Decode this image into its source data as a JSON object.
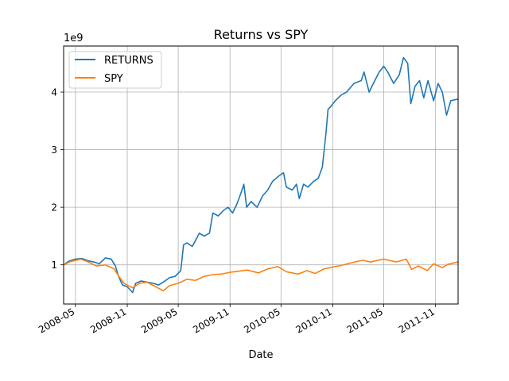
{
  "chart_data": {
    "type": "line",
    "title": "Returns vs SPY",
    "xlabel": "Date",
    "ylabel": "",
    "y_scale_label": "1e9",
    "x_ticks": [
      "2008-05",
      "2008-11",
      "2009-05",
      "2009-11",
      "2010-05",
      "2010-11",
      "2011-05",
      "2011-11"
    ],
    "y_ticks": [
      1,
      2,
      3,
      4
    ],
    "xlim": [
      "2008-03-20",
      "2012-01-20"
    ],
    "ylim": [
      0.32,
      4.8
    ],
    "grid": true,
    "legend_position": "top-left",
    "series": [
      {
        "name": "RETURNS",
        "color": "#1f77b4",
        "points": [
          [
            "2008-03-20",
            1.0
          ],
          [
            "2008-04-10",
            1.07
          ],
          [
            "2008-05-01",
            1.1
          ],
          [
            "2008-05-25",
            1.11
          ],
          [
            "2008-06-15",
            1.07
          ],
          [
            "2008-07-05",
            1.05
          ],
          [
            "2008-07-25",
            1.02
          ],
          [
            "2008-08-15",
            1.12
          ],
          [
            "2008-09-05",
            1.1
          ],
          [
            "2008-09-20",
            0.98
          ],
          [
            "2008-10-01",
            0.8
          ],
          [
            "2008-10-15",
            0.65
          ],
          [
            "2008-11-01",
            0.62
          ],
          [
            "2008-11-20",
            0.52
          ],
          [
            "2008-12-01",
            0.68
          ],
          [
            "2008-12-20",
            0.72
          ],
          [
            "2009-01-10",
            0.7
          ],
          [
            "2009-02-01",
            0.68
          ],
          [
            "2009-02-20",
            0.65
          ],
          [
            "2009-03-09",
            0.7
          ],
          [
            "2009-04-01",
            0.78
          ],
          [
            "2009-04-20",
            0.8
          ],
          [
            "2009-05-10",
            0.9
          ],
          [
            "2009-05-20",
            1.35
          ],
          [
            "2009-06-01",
            1.38
          ],
          [
            "2009-06-20",
            1.32
          ],
          [
            "2009-07-01",
            1.42
          ],
          [
            "2009-07-15",
            1.55
          ],
          [
            "2009-08-01",
            1.5
          ],
          [
            "2009-08-20",
            1.55
          ],
          [
            "2009-09-01",
            1.9
          ],
          [
            "2009-09-20",
            1.85
          ],
          [
            "2009-10-10",
            1.95
          ],
          [
            "2009-10-25",
            2.0
          ],
          [
            "2009-11-10",
            1.9
          ],
          [
            "2009-11-25",
            2.05
          ],
          [
            "2009-12-10",
            2.25
          ],
          [
            "2009-12-20",
            2.4
          ],
          [
            "2009-12-30",
            2.0
          ],
          [
            "2010-01-15",
            2.1
          ],
          [
            "2010-02-05",
            2.0
          ],
          [
            "2010-02-25",
            2.2
          ],
          [
            "2010-03-15",
            2.3
          ],
          [
            "2010-04-01",
            2.45
          ],
          [
            "2010-04-25",
            2.55
          ],
          [
            "2010-05-10",
            2.6
          ],
          [
            "2010-05-20",
            2.35
          ],
          [
            "2010-06-10",
            2.3
          ],
          [
            "2010-06-25",
            2.4
          ],
          [
            "2010-07-05",
            2.15
          ],
          [
            "2010-07-20",
            2.4
          ],
          [
            "2010-08-05",
            2.35
          ],
          [
            "2010-08-25",
            2.45
          ],
          [
            "2010-09-10",
            2.5
          ],
          [
            "2010-09-25",
            2.7
          ],
          [
            "2010-10-08",
            3.3
          ],
          [
            "2010-10-15",
            3.7
          ],
          [
            "2010-10-25",
            3.75
          ],
          [
            "2010-11-10",
            3.85
          ],
          [
            "2010-12-01",
            3.95
          ],
          [
            "2010-12-20",
            4.0
          ],
          [
            "2011-01-15",
            4.15
          ],
          [
            "2011-02-10",
            4.2
          ],
          [
            "2011-02-20",
            4.35
          ],
          [
            "2011-03-10",
            4.0
          ],
          [
            "2011-03-25",
            4.15
          ],
          [
            "2011-04-15",
            4.35
          ],
          [
            "2011-05-01",
            4.45
          ],
          [
            "2011-05-15",
            4.35
          ],
          [
            "2011-06-05",
            4.15
          ],
          [
            "2011-06-25",
            4.3
          ],
          [
            "2011-07-10",
            4.6
          ],
          [
            "2011-07-25",
            4.5
          ],
          [
            "2011-08-05",
            3.8
          ],
          [
            "2011-08-20",
            4.1
          ],
          [
            "2011-09-05",
            4.2
          ],
          [
            "2011-09-20",
            3.9
          ],
          [
            "2011-10-05",
            4.2
          ],
          [
            "2011-10-25",
            3.85
          ],
          [
            "2011-11-10",
            4.15
          ],
          [
            "2011-11-25",
            4.0
          ],
          [
            "2011-12-10",
            3.6
          ],
          [
            "2011-12-25",
            3.85
          ],
          [
            "2012-01-20",
            3.88
          ]
        ]
      },
      {
        "name": "SPY",
        "color": "#ff7f0e",
        "points": [
          [
            "2008-03-20",
            1.0
          ],
          [
            "2008-04-15",
            1.06
          ],
          [
            "2008-05-20",
            1.1
          ],
          [
            "2008-06-15",
            1.05
          ],
          [
            "2008-07-15",
            0.98
          ],
          [
            "2008-08-15",
            1.0
          ],
          [
            "2008-09-15",
            0.93
          ],
          [
            "2008-10-05",
            0.78
          ],
          [
            "2008-10-20",
            0.68
          ],
          [
            "2008-11-20",
            0.6
          ],
          [
            "2008-12-15",
            0.68
          ],
          [
            "2009-01-10",
            0.7
          ],
          [
            "2009-02-10",
            0.62
          ],
          [
            "2009-03-09",
            0.55
          ],
          [
            "2009-04-01",
            0.64
          ],
          [
            "2009-05-01",
            0.68
          ],
          [
            "2009-06-01",
            0.75
          ],
          [
            "2009-07-01",
            0.73
          ],
          [
            "2009-08-01",
            0.8
          ],
          [
            "2009-09-01",
            0.83
          ],
          [
            "2009-10-01",
            0.84
          ],
          [
            "2009-11-01",
            0.87
          ],
          [
            "2009-12-01",
            0.89
          ],
          [
            "2010-01-01",
            0.91
          ],
          [
            "2010-02-10",
            0.86
          ],
          [
            "2010-03-15",
            0.93
          ],
          [
            "2010-04-20",
            0.97
          ],
          [
            "2010-05-20",
            0.88
          ],
          [
            "2010-07-01",
            0.84
          ],
          [
            "2010-08-01",
            0.9
          ],
          [
            "2010-08-30",
            0.85
          ],
          [
            "2010-10-01",
            0.93
          ],
          [
            "2010-11-01",
            0.96
          ],
          [
            "2010-12-01",
            0.99
          ],
          [
            "2011-01-01",
            1.03
          ],
          [
            "2011-02-15",
            1.08
          ],
          [
            "2011-03-15",
            1.05
          ],
          [
            "2011-04-30",
            1.1
          ],
          [
            "2011-06-15",
            1.05
          ],
          [
            "2011-07-20",
            1.1
          ],
          [
            "2011-08-08",
            0.92
          ],
          [
            "2011-09-01",
            0.98
          ],
          [
            "2011-10-03",
            0.9
          ],
          [
            "2011-10-25",
            1.02
          ],
          [
            "2011-11-25",
            0.95
          ],
          [
            "2011-12-15",
            1.01
          ],
          [
            "2012-01-20",
            1.05
          ]
        ]
      }
    ]
  }
}
